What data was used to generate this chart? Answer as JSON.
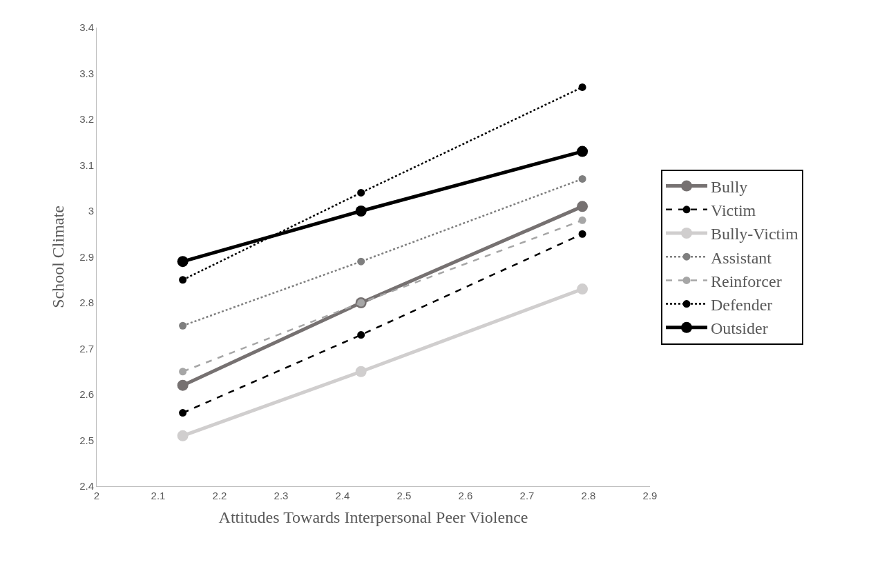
{
  "chart_data": {
    "type": "line",
    "xlabel": "Attitudes Towards Interpersonal Peer Violence",
    "ylabel": "School Climate",
    "x": [
      2.14,
      2.43,
      2.79
    ],
    "xlim": [
      2,
      2.9
    ],
    "xticks": [
      2,
      2.1,
      2.2,
      2.3,
      2.4,
      2.5,
      2.6,
      2.7,
      2.8,
      2.9
    ],
    "ylim": [
      2.4,
      3.4
    ],
    "yticks": [
      2.4,
      2.5,
      2.6,
      2.7,
      2.8,
      2.9,
      3,
      3.1,
      3.2,
      3.3,
      3.4
    ],
    "grid": false,
    "legend": "right",
    "marker": "circle",
    "series": [
      {
        "name": "Bully",
        "color": "#767171",
        "line_style": "solid",
        "values": [
          2.62,
          2.8,
          3.01
        ]
      },
      {
        "name": "Victim",
        "color": "#000000",
        "line_style": "dashed",
        "values": [
          2.56,
          2.73,
          2.95
        ]
      },
      {
        "name": "Bully-Victim",
        "color": "#d0cece",
        "line_style": "solid",
        "values": [
          2.51,
          2.65,
          2.83
        ]
      },
      {
        "name": "Assistant",
        "color": "#7f7f7f",
        "line_style": "dotted",
        "values": [
          2.75,
          2.89,
          3.07
        ]
      },
      {
        "name": "Reinforcer",
        "color": "#a6a6a6",
        "line_style": "dashed",
        "values": [
          2.65,
          2.8,
          2.98
        ]
      },
      {
        "name": "Defender",
        "color": "#000000",
        "line_style": "dotted",
        "values": [
          2.85,
          3.04,
          3.27
        ]
      },
      {
        "name": "Outsider",
        "color": "#000000",
        "line_style": "solid",
        "values": [
          2.89,
          3.0,
          3.13
        ]
      }
    ]
  }
}
